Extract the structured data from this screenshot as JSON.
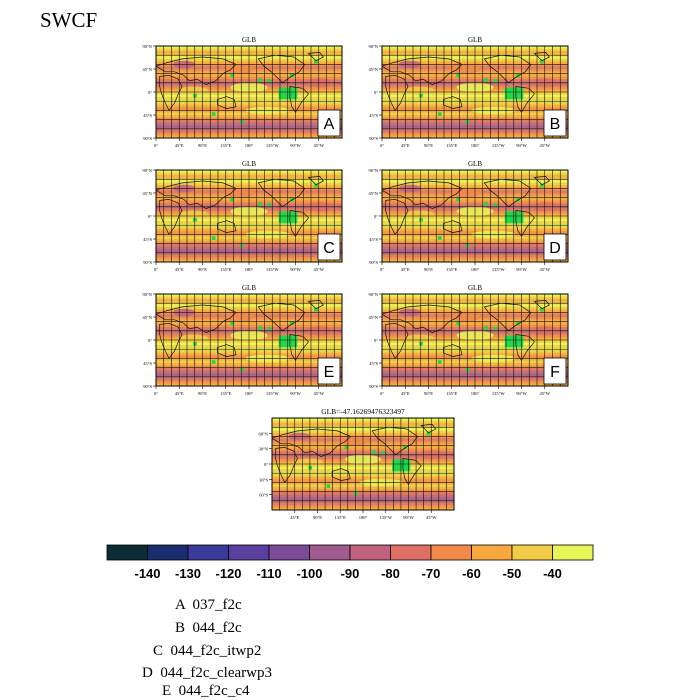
{
  "title": "SWCF",
  "panels": [
    {
      "label": "A",
      "title": "GLB"
    },
    {
      "label": "B",
      "title": "GLB"
    },
    {
      "label": "C",
      "title": "GLB"
    },
    {
      "label": "D",
      "title": "GLB"
    },
    {
      "label": "E",
      "title": "GLB"
    },
    {
      "label": "F",
      "title": "GLB"
    },
    {
      "label": "",
      "title": "GLB=-47.16269476323497"
    }
  ],
  "lat_ticks": [
    "90°N",
    "45°N",
    "0°",
    "45°S",
    "90°S"
  ],
  "lon_ticks": [
    "0°",
    "45°E",
    "90°E",
    "135°E",
    "180°",
    "135°W",
    "90°W",
    "45°W"
  ],
  "small_lat_ticks": [
    "60°N",
    "30°N",
    "0°",
    "30°S",
    "60°S"
  ],
  "small_lon_ticks": [
    "45°E",
    "90°E",
    "135°E",
    "180°",
    "135°W",
    "90°W",
    "45°W"
  ],
  "colorbar": {
    "labels": [
      "-140",
      "-130",
      "-120",
      "-110",
      "-100",
      "-90",
      "-80",
      "-70",
      "-60",
      "-50",
      "-40"
    ],
    "colors": [
      "#0b2b35",
      "#1a2d6e",
      "#3a3a9a",
      "#5a3f9e",
      "#7b4b97",
      "#a15a8e",
      "#c26280",
      "#dc7065",
      "#f28a4b",
      "#f7a83e",
      "#f2cc47",
      "#e9f458"
    ]
  },
  "legend": [
    {
      "key": "A",
      "name": "037_f2c"
    },
    {
      "key": "B",
      "name": "044_f2c"
    },
    {
      "key": "C",
      "name": "044_f2c_itwp2"
    },
    {
      "key": "D",
      "name": "044_f2c_clearwp3"
    },
    {
      "key": "E",
      "name": "044_f2c_c4"
    }
  ],
  "chart_data": {
    "type": "heatmap",
    "variable": "SWCF",
    "colorbar_range": [
      -140,
      -40
    ],
    "colorbar_levels": [
      -140,
      -130,
      -120,
      -110,
      -100,
      -90,
      -80,
      -70,
      -60,
      -50,
      -40
    ],
    "panel_titles": [
      "GLB",
      "GLB",
      "GLB",
      "GLB",
      "GLB",
      "GLB",
      "GLB=-47.16269476323497"
    ],
    "panel_labels": [
      "A",
      "B",
      "C",
      "D",
      "E",
      "F"
    ],
    "global_mean_last_panel": -47.16269476323497,
    "series": [
      "037_f2c",
      "044_f2c",
      "044_f2c_itwp2",
      "044_f2c_clearwp3",
      "044_f2c_c4"
    ]
  }
}
